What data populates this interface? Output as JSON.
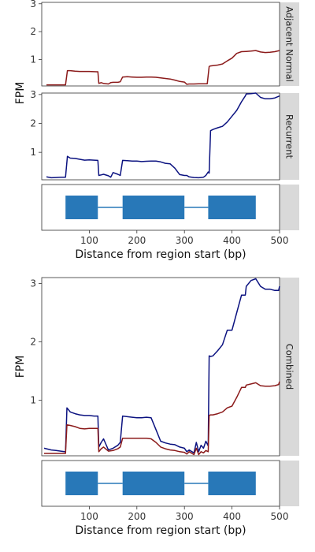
{
  "chart_data": [
    {
      "type": "line",
      "facet": "coverage-top",
      "ylabel": "FPM",
      "xlim": [
        0,
        500
      ],
      "panels": [
        {
          "strip": "Adjacent Normal",
          "ylim": [
            0.05,
            3.05
          ],
          "yticks": [
            1,
            2,
            3
          ],
          "series": [
            {
              "color": "#8b1a1a",
              "x": [
                10,
                48,
                50,
                54,
                60,
                70,
                80,
                90,
                100,
                115,
                118,
                120,
                125,
                130,
                140,
                145,
                150,
                160,
                165,
                170,
                180,
                190,
                200,
                210,
                220,
                230,
                240,
                250,
                260,
                270,
                280,
                290,
                300,
                305,
                310,
                320,
                330,
                340,
                348,
                352,
                355,
                360,
                370,
                380,
                390,
                400,
                410,
                420,
                430,
                440,
                450,
                460,
                470,
                480,
                490,
                500
              ],
              "y": [
                0.09,
                0.09,
                0.09,
                0.6,
                0.6,
                0.58,
                0.57,
                0.57,
                0.57,
                0.56,
                0.56,
                0.14,
                0.17,
                0.14,
                0.12,
                0.17,
                0.18,
                0.18,
                0.2,
                0.37,
                0.38,
                0.37,
                0.36,
                0.36,
                0.37,
                0.37,
                0.36,
                0.34,
                0.32,
                0.3,
                0.26,
                0.21,
                0.19,
                0.11,
                0.12,
                0.12,
                0.13,
                0.13,
                0.13,
                0.75,
                0.77,
                0.78,
                0.8,
                0.84,
                0.95,
                1.05,
                1.22,
                1.28,
                1.29,
                1.3,
                1.32,
                1.27,
                1.25,
                1.26,
                1.28,
                1.32
              ]
            }
          ]
        },
        {
          "strip": "Recurrent",
          "ylim": [
            0.05,
            3.05
          ],
          "yticks": [
            1,
            2,
            3
          ],
          "series": [
            {
              "color": "#0b1280",
              "x": [
                10,
                20,
                30,
                40,
                48,
                50,
                54,
                60,
                70,
                80,
                90,
                100,
                110,
                118,
                120,
                125,
                130,
                140,
                145,
                150,
                160,
                165,
                170,
                180,
                190,
                200,
                210,
                220,
                230,
                240,
                250,
                260,
                270,
                280,
                290,
                300,
                305,
                310,
                320,
                330,
                340,
                345,
                350,
                352,
                355,
                360,
                370,
                380,
                390,
                400,
                410,
                420,
                428,
                430,
                440,
                450,
                460,
                470,
                480,
                490,
                500
              ],
              "y": [
                0.15,
                0.12,
                0.13,
                0.14,
                0.14,
                0.14,
                0.86,
                0.8,
                0.79,
                0.76,
                0.73,
                0.74,
                0.73,
                0.72,
                0.2,
                0.22,
                0.24,
                0.19,
                0.14,
                0.3,
                0.24,
                0.2,
                0.72,
                0.71,
                0.7,
                0.7,
                0.68,
                0.69,
                0.7,
                0.7,
                0.67,
                0.62,
                0.6,
                0.45,
                0.23,
                0.2,
                0.2,
                0.15,
                0.13,
                0.12,
                0.14,
                0.2,
                0.32,
                0.28,
                1.75,
                1.79,
                1.85,
                1.9,
                2.05,
                2.25,
                2.45,
                2.75,
                2.95,
                3.02,
                3.03,
                3.05,
                2.9,
                2.85,
                2.85,
                2.88,
                2.95
              ]
            }
          ]
        }
      ],
      "gene_track": {
        "exons": [
          [
            50,
            118
          ],
          [
            170,
            300
          ],
          [
            350,
            450
          ]
        ],
        "exon_color": "#2878b8",
        "intron_color": "#2878b8"
      },
      "xticks": [
        100,
        200,
        300,
        400,
        500
      ],
      "xlabel": "Distance from region start (bp)"
    },
    {
      "type": "line",
      "facet": "coverage-combined",
      "ylabel": "FPM",
      "xlim": [
        0,
        500
      ],
      "panels": [
        {
          "strip": "Combined",
          "ylim": [
            0.05,
            3.1
          ],
          "yticks": [
            1,
            2,
            3
          ],
          "series": [
            {
              "color": "#0b1280",
              "x": [
                5,
                20,
                30,
                40,
                48,
                50,
                53,
                60,
                70,
                80,
                90,
                100,
                110,
                118,
                120,
                125,
                130,
                140,
                150,
                160,
                165,
                170,
                180,
                190,
                200,
                210,
                220,
                230,
                240,
                250,
                260,
                270,
                280,
                290,
                300,
                305,
                310,
                320,
                325,
                330,
                335,
                340,
                345,
                350,
                352,
                355,
                360,
                370,
                380,
                390,
                400,
                410,
                420,
                428,
                430,
                440,
                450,
                460,
                470,
                480,
                490,
                498,
                500
              ],
              "y": [
                0.18,
                0.15,
                0.14,
                0.13,
                0.12,
                0.12,
                0.87,
                0.8,
                0.77,
                0.75,
                0.74,
                0.74,
                0.73,
                0.73,
                0.2,
                0.28,
                0.34,
                0.15,
                0.18,
                0.23,
                0.28,
                0.73,
                0.72,
                0.71,
                0.7,
                0.7,
                0.71,
                0.7,
                0.5,
                0.3,
                0.27,
                0.25,
                0.24,
                0.2,
                0.18,
                0.12,
                0.15,
                0.1,
                0.28,
                0.12,
                0.23,
                0.18,
                0.3,
                0.22,
                1.76,
                1.75,
                1.76,
                1.85,
                1.95,
                2.2,
                2.2,
                2.5,
                2.8,
                2.8,
                2.95,
                3.05,
                3.08,
                2.95,
                2.9,
                2.9,
                2.88,
                2.88,
                2.95
              ]
            },
            {
              "color": "#8b1a1a",
              "x": [
                5,
                20,
                30,
                40,
                48,
                50,
                53,
                60,
                70,
                80,
                90,
                100,
                110,
                118,
                120,
                125,
                130,
                140,
                150,
                160,
                165,
                170,
                180,
                190,
                200,
                210,
                220,
                230,
                240,
                250,
                260,
                270,
                280,
                290,
                300,
                305,
                310,
                320,
                325,
                330,
                335,
                340,
                345,
                350,
                352,
                355,
                360,
                370,
                380,
                390,
                400,
                410,
                420,
                428,
                430,
                440,
                450,
                460,
                470,
                480,
                490,
                498,
                500
              ],
              "y": [
                0.09,
                0.09,
                0.09,
                0.09,
                0.09,
                0.09,
                0.58,
                0.57,
                0.55,
                0.52,
                0.51,
                0.52,
                0.52,
                0.52,
                0.12,
                0.17,
                0.2,
                0.13,
                0.14,
                0.17,
                0.2,
                0.35,
                0.35,
                0.35,
                0.35,
                0.35,
                0.35,
                0.34,
                0.28,
                0.2,
                0.17,
                0.15,
                0.14,
                0.12,
                0.11,
                0.08,
                0.12,
                0.07,
                0.18,
                0.07,
                0.12,
                0.1,
                0.14,
                0.12,
                0.74,
                0.75,
                0.75,
                0.77,
                0.8,
                0.87,
                0.9,
                1.05,
                1.22,
                1.22,
                1.26,
                1.28,
                1.3,
                1.25,
                1.24,
                1.24,
                1.25,
                1.27,
                1.32
              ]
            }
          ]
        }
      ],
      "gene_track": {
        "exons": [
          [
            50,
            118
          ],
          [
            170,
            300
          ],
          [
            350,
            450
          ]
        ],
        "exon_color": "#2878b8",
        "intron_color": "#2878b8"
      },
      "xticks": [
        100,
        200,
        300,
        400,
        500
      ],
      "xlabel": "Distance from region start (bp)"
    }
  ]
}
